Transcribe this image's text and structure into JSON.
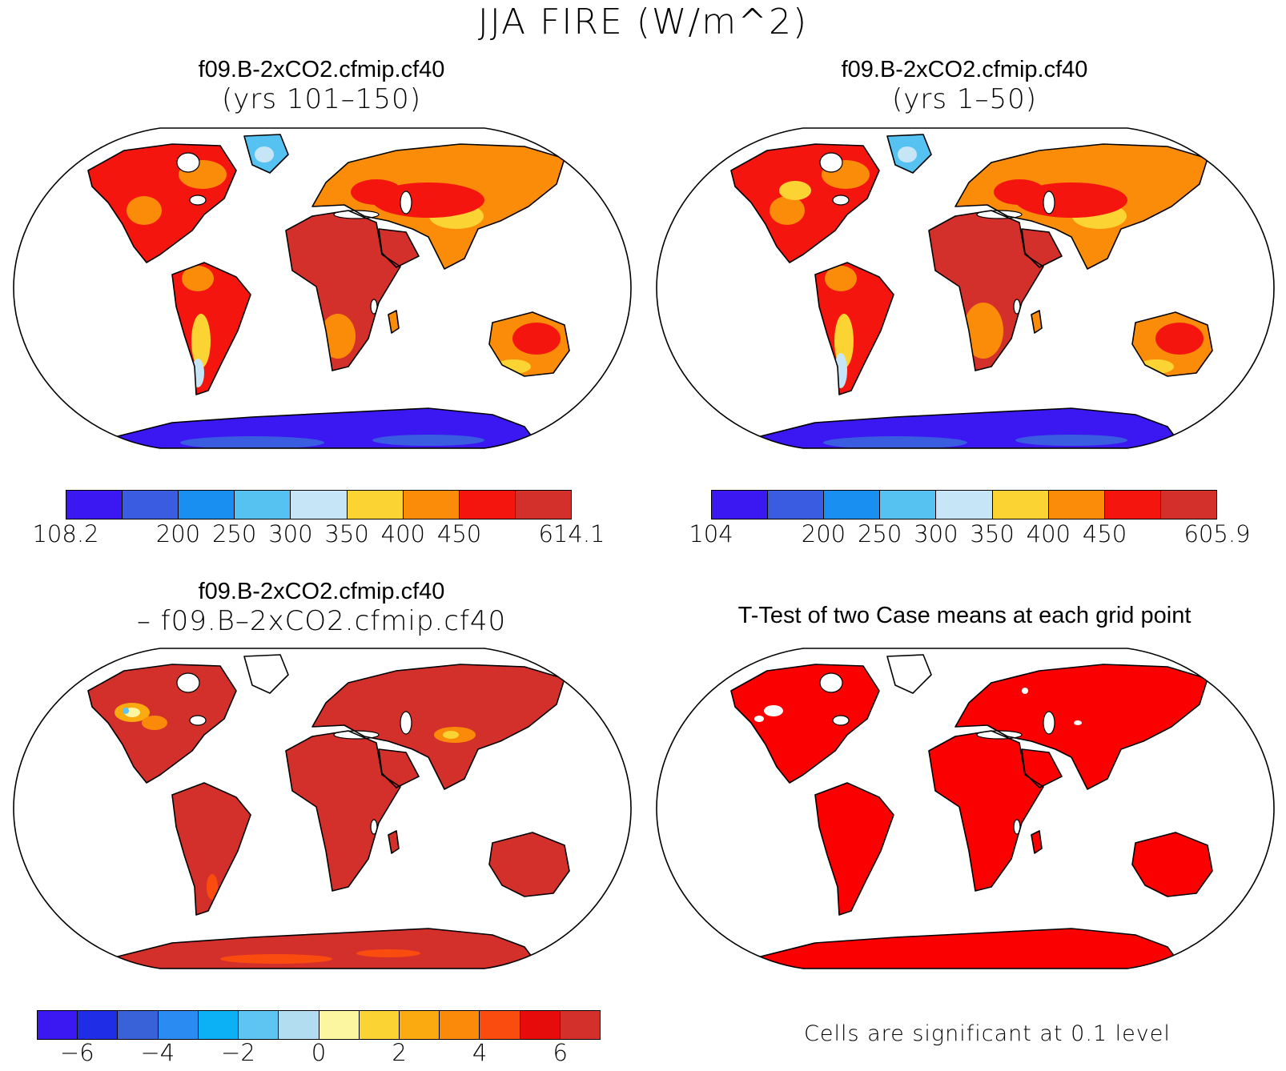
{
  "main_title": "JJA FIRE (W/m^2)",
  "panels": [
    {
      "title": "f09.B-2xCO2.cfmip.cf40",
      "subtitle": "(yrs 101–150)",
      "fill_style": "mean_a",
      "colorbar": {
        "colors": [
          "#3b17f2",
          "#3a5ce0",
          "#1a8ff2",
          "#56c2f2",
          "#c6e6f7",
          "#fbd332",
          "#fb8c0a",
          "#f5150f",
          "#d3302c"
        ],
        "ticks": [
          {
            "label": "108.2",
            "index": 0
          },
          {
            "label": "200",
            "index": 2
          },
          {
            "label": "250",
            "index": 3
          },
          {
            "label": "300",
            "index": 4
          },
          {
            "label": "350",
            "index": 5
          },
          {
            "label": "400",
            "index": 6
          },
          {
            "label": "450",
            "index": 7
          },
          {
            "label": "614.1",
            "index": 9
          }
        ]
      }
    },
    {
      "title": "f09.B-2xCO2.cfmip.cf40",
      "subtitle": "(yrs 1–50)",
      "fill_style": "mean_b",
      "colorbar": {
        "colors": [
          "#3b17f2",
          "#3a5ce0",
          "#1a8ff2",
          "#56c2f2",
          "#c6e6f7",
          "#fbd332",
          "#fb8c0a",
          "#f5150f",
          "#d3302c"
        ],
        "ticks": [
          {
            "label": "104",
            "index": 0
          },
          {
            "label": "200",
            "index": 2
          },
          {
            "label": "250",
            "index": 3
          },
          {
            "label": "300",
            "index": 4
          },
          {
            "label": "350",
            "index": 5
          },
          {
            "label": "400",
            "index": 6
          },
          {
            "label": "450",
            "index": 7
          },
          {
            "label": "605.9",
            "index": 9
          }
        ]
      }
    },
    {
      "title": "f09.B-2xCO2.cfmip.cf40",
      "subtitle": "– f09.B–2xCO2.cfmip.cf40",
      "fill_style": "diff",
      "colorbar": {
        "colors": [
          "#3b17f2",
          "#1f2ee6",
          "#3a62d8",
          "#2a8cf2",
          "#0cb0f5",
          "#5ec4f2",
          "#b2dcf0",
          "#fdf6a0",
          "#fbd332",
          "#fbab0f",
          "#fb8a0a",
          "#fb4c10",
          "#e60c0c",
          "#d3302c"
        ],
        "ticks": [
          {
            "label": "−6",
            "index": 1
          },
          {
            "label": "−4",
            "index": 3
          },
          {
            "label": "−2",
            "index": 5
          },
          {
            "label": "0",
            "index": 7
          },
          {
            "label": "2",
            "index": 9
          },
          {
            "label": "4",
            "index": 11
          },
          {
            "label": "6",
            "index": 13
          }
        ]
      }
    },
    {
      "title": "T-Test of two Case means at each grid point",
      "subtitle": "",
      "fill_style": "ttest",
      "note": "Cells are significant at 0.1 level"
    }
  ],
  "colors": {
    "ocean": "#ffffff",
    "coast": "#000000",
    "hot": "#d3302c",
    "red": "#f5150f",
    "orange": "#fb8c0a",
    "yellow": "#fbd332",
    "light": "#c6e6f7",
    "cyan": "#56c2f2",
    "blue": "#3a5ce0",
    "deep": "#3b17f2",
    "sig": "#fb0000"
  }
}
